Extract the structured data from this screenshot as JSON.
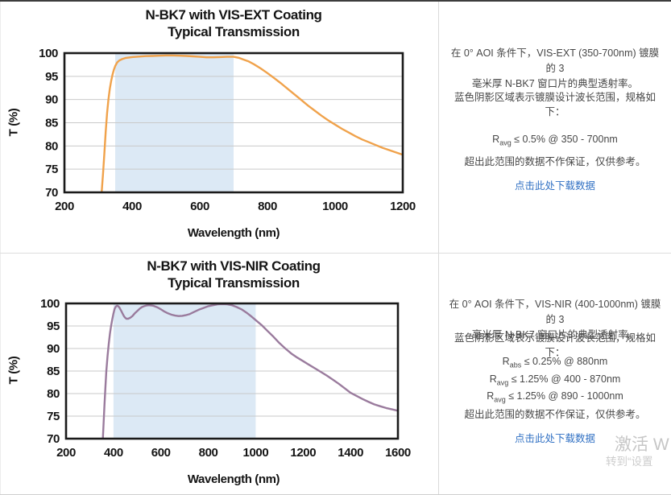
{
  "colors": {
    "grid": "#c9c9c9",
    "plot_border": "#1a1a1a",
    "shade_blue": "#dce9f5",
    "curve_orange": "#f0a24b",
    "curve_purple": "#9a7b9d",
    "link_blue": "#3070c3",
    "text_gray": "#474747",
    "divider_gray": "#d9d9d9",
    "watermark_gray": "#c6c6c6"
  },
  "chart_data": [
    {
      "type": "line",
      "title": "N-BK7 with VIS-EXT Coating",
      "subtitle": "Typical Transmission",
      "xlabel": "Wavelength (nm)",
      "ylabel": "T (%)",
      "xlim": [
        200,
        1200
      ],
      "ylim": [
        70,
        100
      ],
      "xticks": [
        200,
        400,
        600,
        800,
        1000,
        1200
      ],
      "yticks": [
        70,
        75,
        80,
        85,
        90,
        95,
        100
      ],
      "grid": "horizontal",
      "legend": "none",
      "shaded_region": {
        "x0": 350,
        "x1": 700,
        "color": "#dce9f5"
      },
      "line_color": "#f0a24b",
      "series": [
        {
          "name": "Transmission",
          "x": [
            300,
            306,
            310,
            314,
            318,
            322,
            326,
            330,
            334,
            338,
            342,
            346,
            350,
            356,
            362,
            370,
            380,
            400,
            420,
            440,
            460,
            480,
            500,
            520,
            540,
            560,
            580,
            600,
            620,
            640,
            660,
            680,
            700,
            715,
            730,
            745,
            760,
            780,
            800,
            820,
            840,
            860,
            880,
            900,
            920,
            940,
            960,
            980,
            1000,
            1020,
            1040,
            1060,
            1080,
            1100,
            1120,
            1140,
            1160,
            1180,
            1200
          ],
          "y": [
            60,
            65,
            70,
            74,
            78.5,
            83,
            87,
            90,
            92.3,
            94,
            95.3,
            96.4,
            97.2,
            98,
            98.4,
            98.7,
            98.95,
            99.15,
            99.25,
            99.35,
            99.4,
            99.45,
            99.5,
            99.5,
            99.45,
            99.4,
            99.3,
            99.2,
            99.1,
            99.1,
            99.15,
            99.2,
            99.2,
            99,
            98.6,
            98.2,
            97.6,
            96.7,
            95.7,
            94.6,
            93.5,
            92.3,
            91.1,
            89.9,
            88.7,
            87.6,
            86.5,
            85.5,
            84.6,
            83.7,
            82.9,
            82.1,
            81.4,
            80.8,
            80.2,
            79.6,
            79.1,
            78.6,
            78.1
          ]
        }
      ]
    },
    {
      "type": "line",
      "title": "N-BK7 with VIS-NIR Coating",
      "subtitle": "Typical Transmission",
      "xlabel": "Wavelength (nm)",
      "ylabel": "T (%)",
      "xlim": [
        200,
        1600
      ],
      "ylim": [
        70,
        100
      ],
      "xticks": [
        200,
        400,
        600,
        800,
        1000,
        1200,
        1400,
        1600
      ],
      "yticks": [
        70,
        75,
        80,
        85,
        90,
        95,
        100
      ],
      "grid": "horizontal",
      "legend": "none",
      "shaded_region": {
        "x0": 400,
        "x1": 1000,
        "color": "#dce9f5"
      },
      "line_color": "#9a7b9d",
      "series": [
        {
          "name": "Transmission",
          "x": [
            346,
            350,
            354,
            358,
            362,
            366,
            370,
            375,
            380,
            385,
            390,
            395,
            400,
            405,
            410,
            415,
            420,
            425,
            430,
            435,
            440,
            445,
            450,
            455,
            462,
            470,
            480,
            490,
            500,
            510,
            520,
            530,
            540,
            550,
            560,
            570,
            580,
            590,
            600,
            615,
            630,
            645,
            660,
            675,
            690,
            705,
            720,
            740,
            760,
            780,
            800,
            820,
            840,
            860,
            880,
            900,
            920,
            940,
            960,
            980,
            1000,
            1025,
            1050,
            1075,
            1100,
            1125,
            1150,
            1175,
            1200,
            1225,
            1250,
            1275,
            1300,
            1325,
            1350,
            1375,
            1400,
            1425,
            1450,
            1475,
            1500,
            1525,
            1550,
            1575,
            1600
          ],
          "y": [
            60,
            64,
            68.5,
            73,
            77.5,
            81.5,
            85,
            88.3,
            91,
            93.2,
            95,
            96.5,
            97.8,
            98.8,
            99.3,
            99.5,
            99.4,
            99.1,
            98.6,
            98.1,
            97.6,
            97.1,
            96.8,
            96.6,
            96.6,
            96.8,
            97.2,
            97.8,
            98.3,
            98.8,
            99.2,
            99.4,
            99.55,
            99.6,
            99.55,
            99.45,
            99.25,
            99,
            98.7,
            98.2,
            97.8,
            97.5,
            97.3,
            97.2,
            97.25,
            97.4,
            97.6,
            98.1,
            98.6,
            99,
            99.4,
            99.6,
            99.8,
            99.85,
            99.8,
            99.6,
            99.2,
            98.7,
            98,
            97.2,
            96.3,
            95.2,
            93.9,
            92.6,
            91.2,
            90,
            88.9,
            88,
            87.2,
            86.4,
            85.6,
            84.8,
            84,
            83.1,
            82.2,
            81.2,
            80.2,
            79.5,
            78.8,
            78.2,
            77.6,
            77.2,
            76.8,
            76.5,
            76.2
          ]
        }
      ]
    }
  ],
  "notes": [
    {
      "desc_line1": "在 0° AOI 条件下，VIS-EXT (350-700nm) 镀膜的 3",
      "desc_line2": "毫米厚 N-BK7 窗口片的典型透射率。",
      "shading_note": "蓝色阴影区域表示镀膜设计波长范围，规格如下：",
      "specs": [
        {
          "base": "R",
          "sub": "avg",
          "rest": " ≤ 0.5% @ 350 - 700nm"
        }
      ],
      "disclaimer": "超出此范围的数据不作保证，仅供参考。",
      "link": "点击此处下载数据"
    },
    {
      "desc_line1": "在 0° AOI 条件下，VIS-NIR (400-1000nm) 镀膜的 3",
      "desc_line2": "毫米厚 N-BK7 窗口片的典型透射率。",
      "shading_note": "蓝色阴影区域表示镀膜设计波长范围，规格如下：",
      "specs": [
        {
          "base": "R",
          "sub": "abs",
          "rest": " ≤ 0.25% @ 880nm"
        },
        {
          "base": "R",
          "sub": "avg",
          "rest": " ≤ 1.25% @ 400 - 870nm"
        },
        {
          "base": "R",
          "sub": "avg",
          "rest": " ≤ 1.25% @ 890 - 1000nm"
        }
      ],
      "disclaimer": "超出此范围的数据不作保证，仅供参考。",
      "link": "点击此处下载数据"
    }
  ],
  "watermark": {
    "line1": "激活 W",
    "line2": "转到“设置"
  }
}
